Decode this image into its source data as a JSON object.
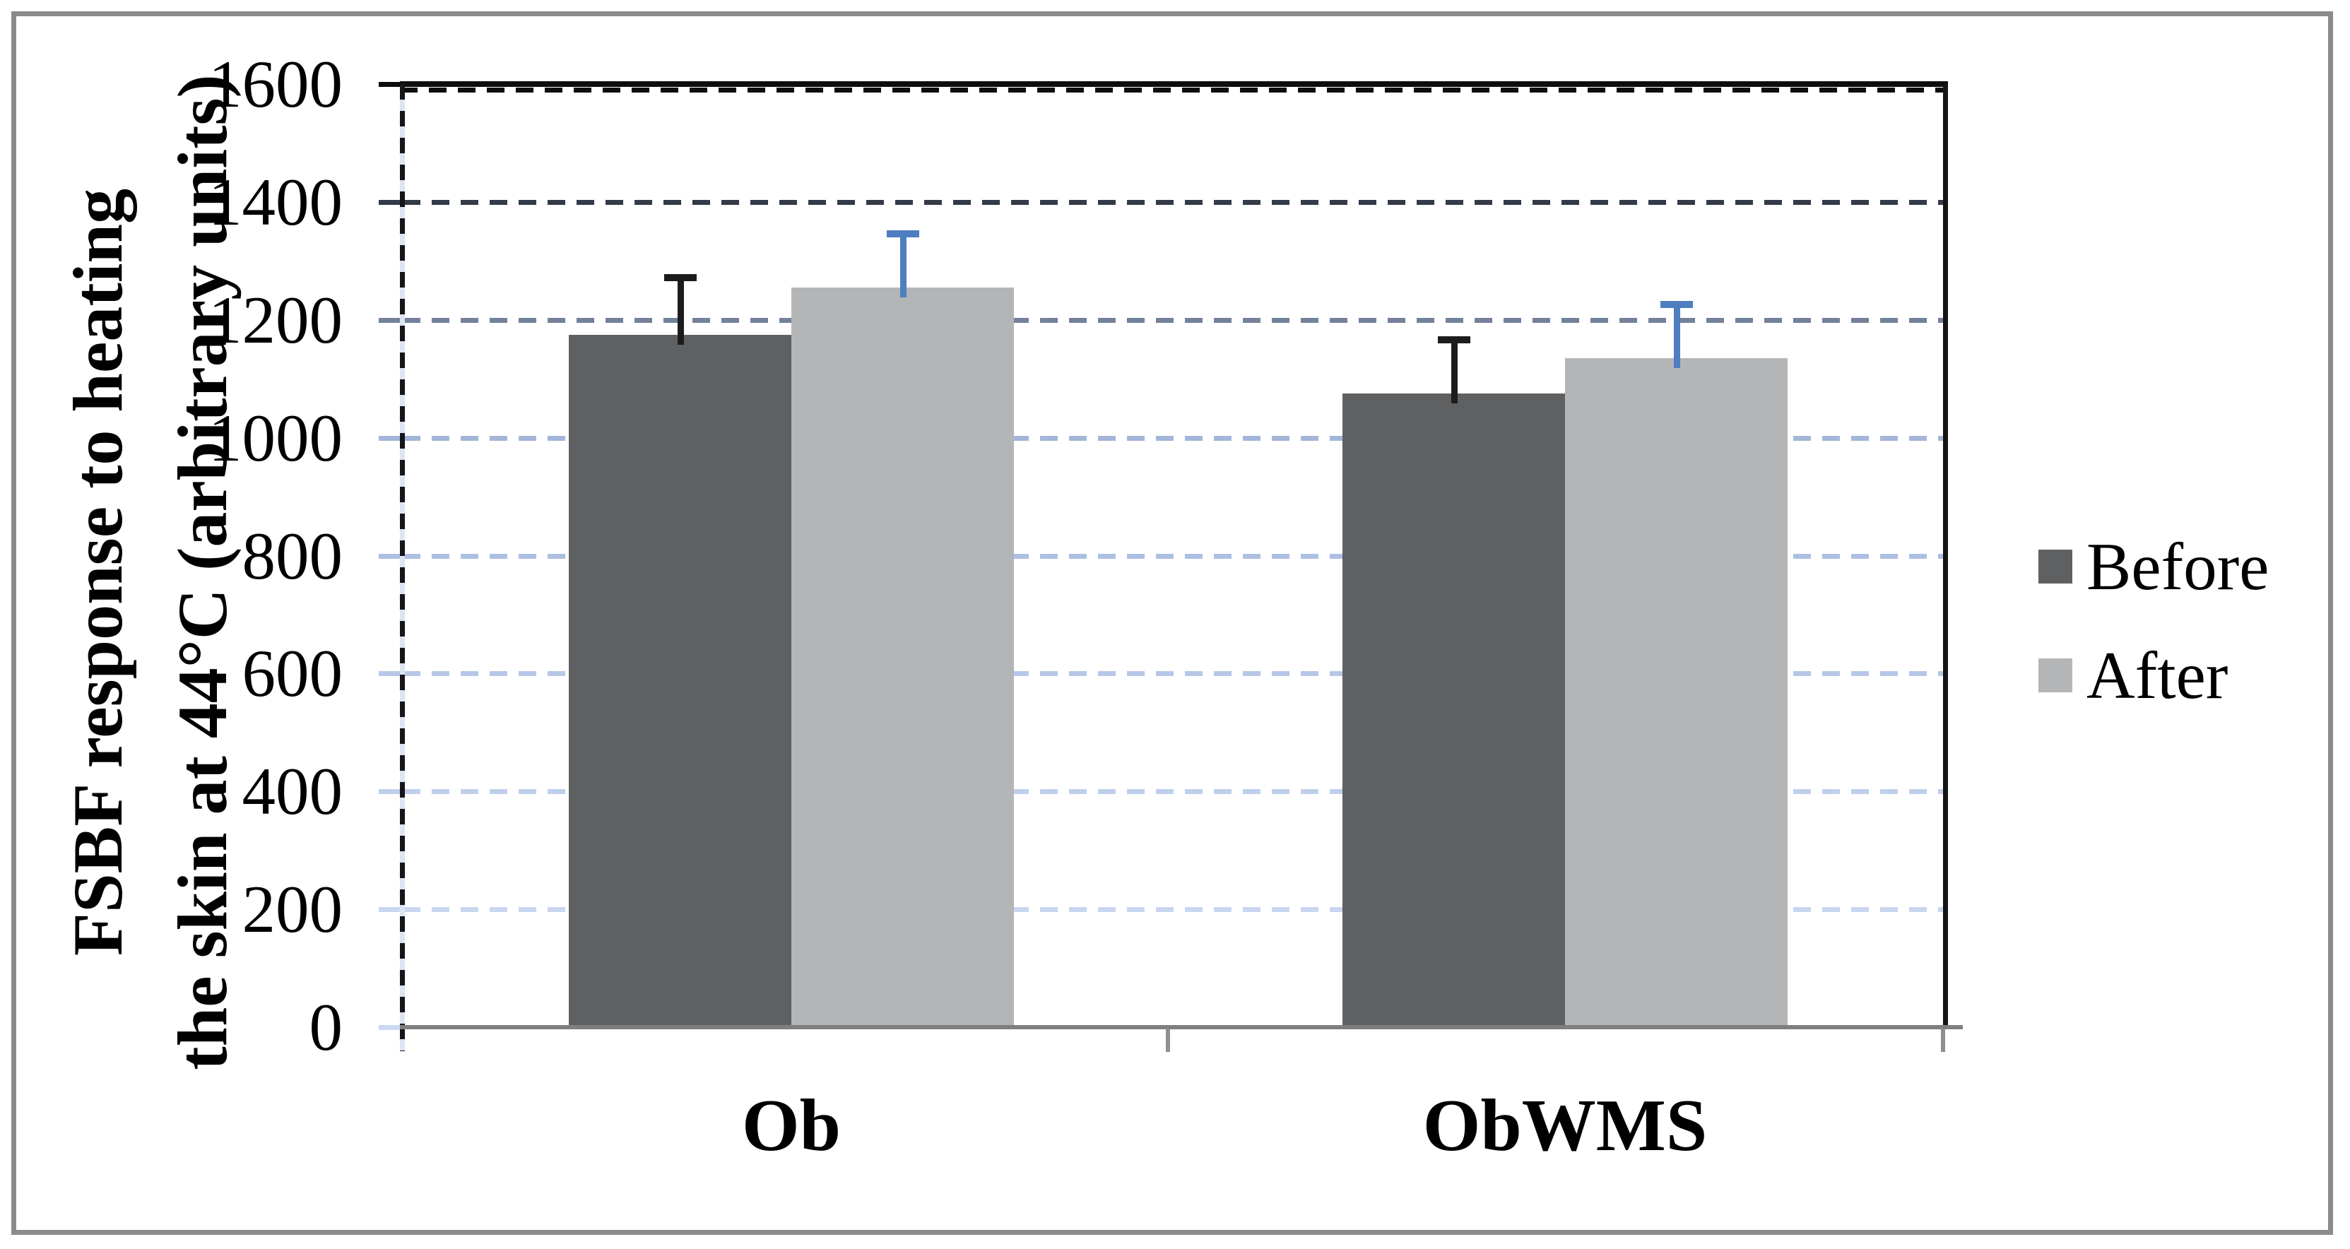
{
  "chart_data": {
    "type": "bar",
    "title": "",
    "y_axis_title_line1": "FSBF response to heating",
    "y_axis_title_line2": "the skin at 44°C (arbitrary units)",
    "categories": [
      "Ob",
      "ObWMS"
    ],
    "series": [
      {
        "name": "Before",
        "color": "#5f6062",
        "error_color": "#1c1c1c",
        "values": [
          1175,
          1075
        ],
        "error_plus": [
          100,
          95
        ]
      },
      {
        "name": "After",
        "color": "#b4b5b7",
        "error_color": "#4d7ec0",
        "values": [
          1255,
          1135
        ],
        "error_plus": [
          95,
          95
        ]
      }
    ],
    "ylim": [
      0,
      1600
    ],
    "yticks": [
      0,
      200,
      400,
      600,
      800,
      1000,
      1200,
      1400,
      1600
    ],
    "ytick_labels": [
      "0",
      "200",
      "400",
      "600",
      "800",
      "1000",
      "1200",
      "1400",
      "1600"
    ],
    "grid": true,
    "legend_position": "right",
    "error_bars": "plus-direction-only"
  },
  "style": {
    "figure_border_color": "#8b8b8b",
    "plot_border_color": "#0d0d0d",
    "x_axis_color": "#7f7f7f",
    "gridline_colors": {
      "1600": "#0d0d0d",
      "1400": "#333b48",
      "1200": "#74819a",
      "1000": "#a3b6da",
      "800": "#adbfe2",
      "600": "#b6c7e8",
      "400": "#bfcfec",
      "200": "#c9d6f0",
      "0": "#ccd9f0"
    }
  }
}
